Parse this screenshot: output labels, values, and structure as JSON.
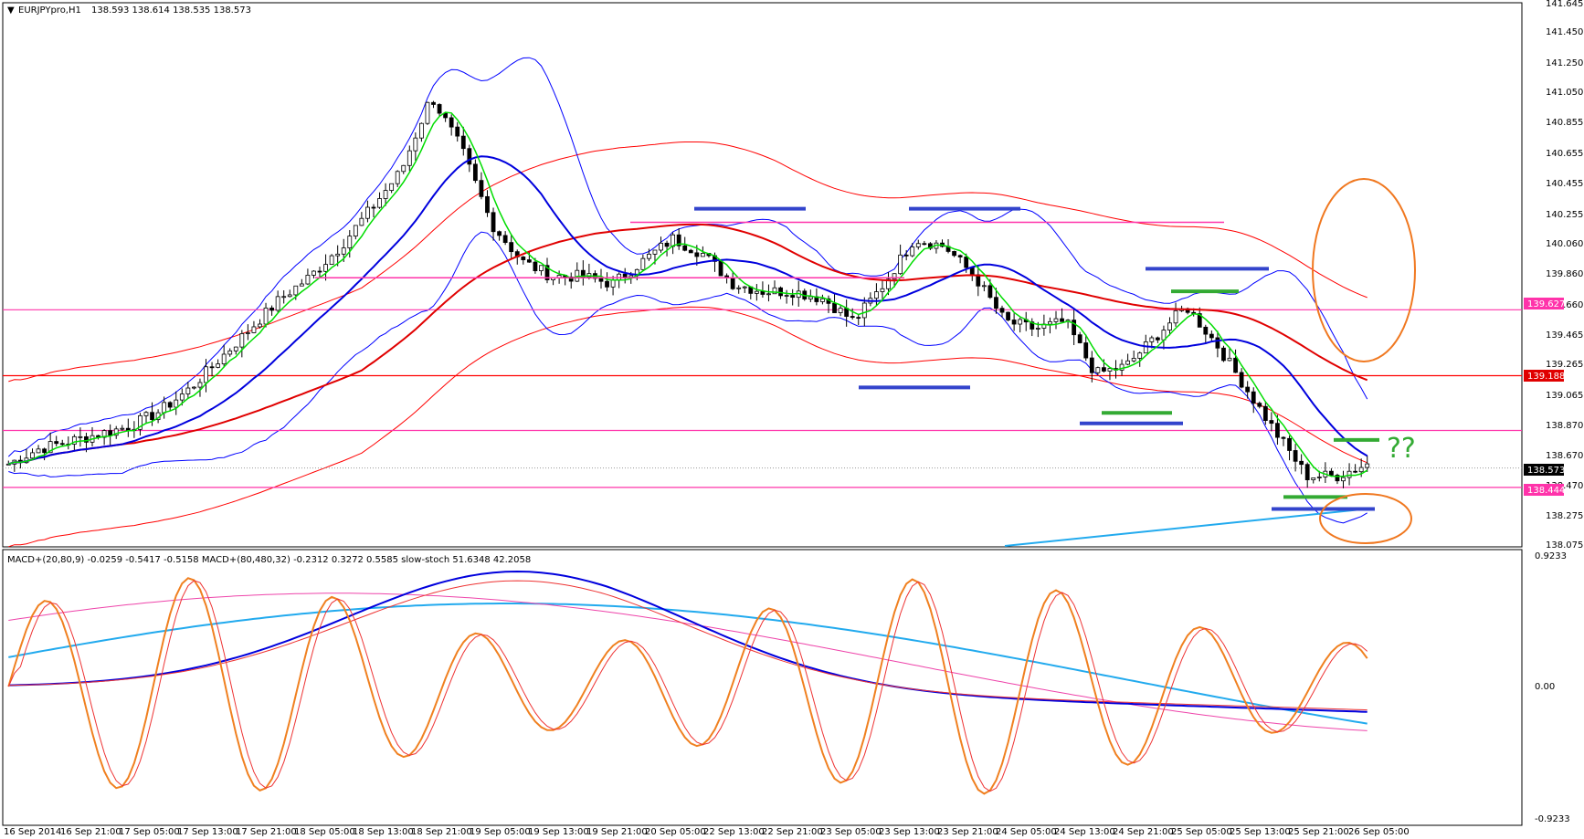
{
  "main": {
    "symbol_label": "EURJPYpro,H1",
    "ohlc_label": "138.593 138.614 138.535 138.573",
    "price_axis": [
      "141.645",
      "141.450",
      "141.250",
      "141.050",
      "140.855",
      "140.655",
      "140.455",
      "140.255",
      "140.060",
      "139.860",
      "139.660",
      "139.465",
      "139.265",
      "139.065",
      "138.870",
      "138.670",
      "138.470",
      "138.275",
      "138.075"
    ],
    "tags": [
      {
        "text": "139.627",
        "price": 139.627,
        "color": "#ff33aa"
      },
      {
        "text": "139.188",
        "price": 139.188,
        "color": "#e00000"
      },
      {
        "text": "138.573",
        "price": 138.573,
        "color": "#000000"
      },
      {
        "text": "138.444",
        "price": 138.444,
        "color": "#ff33aa"
      }
    ],
    "question_mark": "??"
  },
  "indicator": {
    "label": "MACD+(20,80,9) -0.0259 -0.5417 -0.5158  MACD+(80,480,32) -0.2312 0.3272 0.5585  slow-stoch 51.6348 42.2058",
    "axis": [
      "0.9233",
      "0.00",
      "-0.9233"
    ]
  },
  "time_axis": [
    "16 Sep 2014",
    "16 Sep 21:00",
    "17 Sep 05:00",
    "17 Sep 13:00",
    "17 Sep 21:00",
    "18 Sep 05:00",
    "18 Sep 13:00",
    "18 Sep 21:00",
    "19 Sep 05:00",
    "19 Sep 13:00",
    "19 Sep 21:00",
    "20 Sep 05:00",
    "22 Sep 13:00",
    "22 Sep 21:00",
    "23 Sep 05:00",
    "23 Sep 13:00",
    "23 Sep 21:00",
    "24 Sep 05:00",
    "24 Sep 13:00",
    "24 Sep 21:00",
    "25 Sep 05:00",
    "25 Sep 13:00",
    "25 Sep 21:00",
    "26 Sep 05:00"
  ],
  "colors": {
    "bull": "#ffffff",
    "bear": "#000000",
    "ma_fast": "#00dd00",
    "ma_mid": "#0000dd",
    "ma_slow": "#e00000",
    "bands": "#0000ff",
    "env": "#ff0000",
    "horiz": "#ff33aa",
    "support": "#3344cc",
    "zone": "#33aa33",
    "circle": "#f07820",
    "trend": "#22aaee"
  },
  "chart_data": {
    "type": "candlestick",
    "title": "EURJPYpro,H1",
    "ylim": [
      138.06,
      141.66
    ],
    "price_path": [
      138.6,
      138.7,
      138.75,
      138.8,
      138.85,
      138.95,
      139.1,
      139.3,
      139.5,
      139.7,
      139.85,
      140.05,
      140.3,
      140.55,
      141.05,
      140.7,
      140.2,
      139.95,
      139.85,
      139.85,
      139.8,
      139.95,
      140.1,
      140.0,
      139.8,
      139.75,
      139.75,
      139.7,
      139.55,
      139.8,
      140.1,
      140.05,
      139.85,
      139.55,
      139.5,
      139.55,
      139.2,
      139.25,
      139.45,
      139.65,
      139.4,
      139.1,
      138.8,
      138.52,
      138.52,
      138.6
    ],
    "support_lines": [
      {
        "label": "pink-horizontal",
        "price": 139.627
      },
      {
        "label": "red-horizontal",
        "price": 139.188
      },
      {
        "label": "pink-horizontal",
        "price": 138.823
      },
      {
        "label": "pink-horizontal",
        "price": 138.444
      }
    ]
  }
}
